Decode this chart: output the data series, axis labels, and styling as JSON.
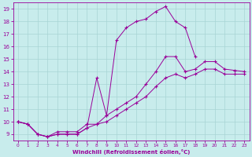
{
  "xlabel": "Windchill (Refroidissement éolien,°C)",
  "bg_color": "#c8ecec",
  "line_color": "#990099",
  "grid_color": "#a8d4d4",
  "xlim": [
    -0.5,
    23.5
  ],
  "ylim": [
    8.5,
    19.5
  ],
  "xticks": [
    0,
    1,
    2,
    3,
    4,
    5,
    6,
    7,
    8,
    9,
    10,
    11,
    12,
    13,
    14,
    15,
    16,
    17,
    18,
    19,
    20,
    21,
    22,
    23
  ],
  "yticks": [
    9,
    10,
    11,
    12,
    13,
    14,
    15,
    16,
    17,
    18,
    19
  ],
  "line1_x": [
    0,
    1,
    2,
    3,
    4,
    5,
    6,
    7,
    8,
    9,
    10,
    11,
    12,
    13,
    14,
    15,
    16,
    17,
    18
  ],
  "line1_y": [
    10,
    9.8,
    9,
    8.8,
    9.2,
    9.2,
    9.2,
    9.8,
    9.8,
    10.5,
    16.5,
    17.5,
    18,
    18.2,
    18.8,
    19.2,
    18,
    17.5,
    15.2
  ],
  "line2_x": [
    0,
    1,
    2,
    3,
    4,
    5,
    6,
    7,
    8,
    9,
    10,
    11,
    12,
    13,
    14,
    15,
    16,
    17,
    18,
    19,
    20,
    21,
    22,
    23
  ],
  "line2_y": [
    10,
    9.8,
    9,
    8.8,
    9,
    9,
    9,
    9.5,
    13.5,
    10.5,
    11,
    11.5,
    12,
    13,
    14,
    15.2,
    15.2,
    14.0,
    14.2,
    14.8,
    14.8,
    14.2,
    14.1,
    14.0
  ],
  "line3_x": [
    0,
    1,
    2,
    3,
    4,
    5,
    6,
    7,
    8,
    9,
    10,
    11,
    12,
    13,
    14,
    15,
    16,
    17,
    18,
    19,
    20,
    21,
    22,
    23
  ],
  "line3_y": [
    10,
    9.8,
    9,
    8.8,
    9,
    9,
    9,
    9.5,
    9.8,
    10.0,
    10.5,
    11,
    11.5,
    12,
    12.8,
    13.5,
    13.8,
    13.5,
    13.8,
    14.2,
    14.2,
    13.8,
    13.8,
    13.8
  ]
}
